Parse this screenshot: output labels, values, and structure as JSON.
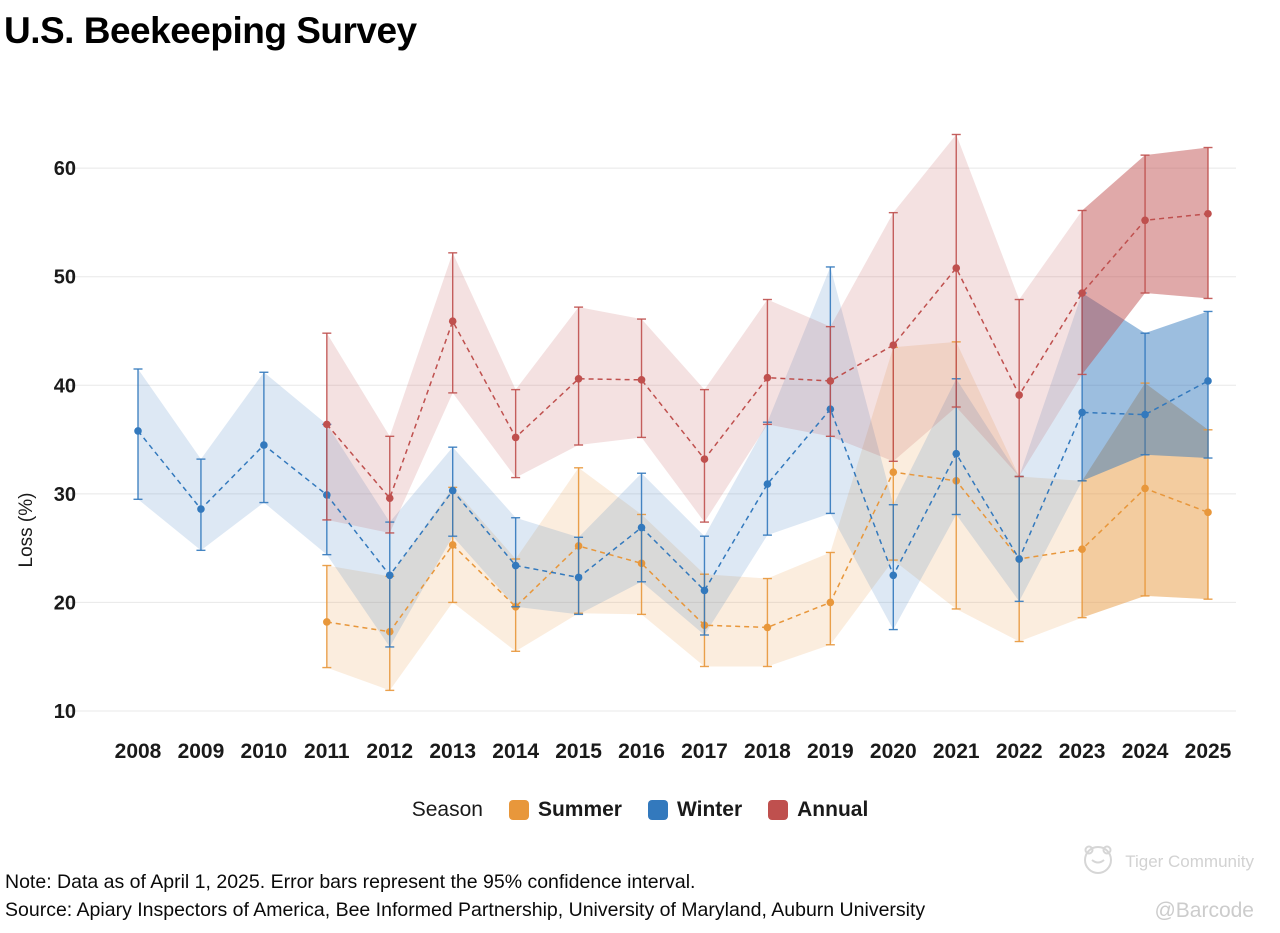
{
  "title": "U.S. Beekeeping Survey",
  "y_axis_label": "Loss (%)",
  "legend": {
    "title": "Season"
  },
  "note": "Note: Data as of April 1, 2025. Error bars represent the 95% confidence interval.",
  "source": "Source: Apiary Inspectors of America, Bee Informed Partnership, University of Maryland, Auburn University",
  "watermark": {
    "community": "Tiger Community",
    "handle": "@Barcode"
  },
  "colors": {
    "summer": "#E8973B",
    "winter": "#3379BD",
    "annual": "#BF504E",
    "grid": "#e8e8e8"
  },
  "chart_data": {
    "type": "line",
    "title": "U.S. Beekeeping Survey",
    "xlabel": "",
    "ylabel": "Loss (%)",
    "ylim": [
      8,
      65
    ],
    "yticks": [
      10,
      20,
      30,
      40,
      50,
      60
    ],
    "xticks": [
      2008,
      2009,
      2010,
      2011,
      2012,
      2013,
      2014,
      2015,
      2016,
      2017,
      2018,
      2019,
      2020,
      2021,
      2022,
      2023,
      2024,
      2025
    ],
    "x_range": [
      2008,
      2025
    ],
    "grid": "horizontal",
    "legend_position": "bottom",
    "highlight_from_year": 2023,
    "band_meaning": "95% confidence interval",
    "series": [
      {
        "name": "Summer",
        "color": "#E8973B",
        "points": [
          {
            "year": 2011,
            "value": 18.2,
            "low": 14.0,
            "high": 23.4
          },
          {
            "year": 2012,
            "value": 17.3,
            "low": 11.9,
            "high": 22.4
          },
          {
            "year": 2013,
            "value": 25.3,
            "low": 20.0,
            "high": 30.6
          },
          {
            "year": 2014,
            "value": 19.6,
            "low": 15.5,
            "high": 24.0
          },
          {
            "year": 2015,
            "value": 25.2,
            "low": 19.0,
            "high": 32.4
          },
          {
            "year": 2016,
            "value": 23.6,
            "low": 18.9,
            "high": 28.1
          },
          {
            "year": 2017,
            "value": 17.9,
            "low": 14.1,
            "high": 22.6
          },
          {
            "year": 2018,
            "value": 17.7,
            "low": 14.1,
            "high": 22.2
          },
          {
            "year": 2019,
            "value": 20.0,
            "low": 16.1,
            "high": 24.6
          },
          {
            "year": 2020,
            "value": 32.0,
            "low": 23.9,
            "high": 43.5
          },
          {
            "year": 2021,
            "value": 31.2,
            "low": 19.4,
            "high": 44.0
          },
          {
            "year": 2022,
            "value": 24.0,
            "low": 16.4,
            "high": 31.6
          },
          {
            "year": 2023,
            "value": 24.9,
            "low": 18.6,
            "high": 31.2
          },
          {
            "year": 2024,
            "value": 30.5,
            "low": 20.6,
            "high": 40.2
          },
          {
            "year": 2025,
            "value": 28.3,
            "low": 20.3,
            "high": 35.9
          }
        ]
      },
      {
        "name": "Winter",
        "color": "#3379BD",
        "points": [
          {
            "year": 2008,
            "value": 35.8,
            "low": 29.5,
            "high": 41.5
          },
          {
            "year": 2009,
            "value": 28.6,
            "low": 24.8,
            "high": 33.2
          },
          {
            "year": 2010,
            "value": 34.5,
            "low": 29.2,
            "high": 41.2
          },
          {
            "year": 2011,
            "value": 29.9,
            "low": 24.4,
            "high": 36.4
          },
          {
            "year": 2012,
            "value": 22.5,
            "low": 15.9,
            "high": 27.4
          },
          {
            "year": 2013,
            "value": 30.3,
            "low": 26.1,
            "high": 34.3
          },
          {
            "year": 2014,
            "value": 23.4,
            "low": 19.6,
            "high": 27.8
          },
          {
            "year": 2015,
            "value": 22.3,
            "low": 18.9,
            "high": 26.0
          },
          {
            "year": 2016,
            "value": 26.9,
            "low": 21.9,
            "high": 31.9
          },
          {
            "year": 2017,
            "value": 21.1,
            "low": 17.0,
            "high": 26.1
          },
          {
            "year": 2018,
            "value": 30.9,
            "low": 26.2,
            "high": 36.6
          },
          {
            "year": 2019,
            "value": 37.8,
            "low": 28.2,
            "high": 50.9
          },
          {
            "year": 2020,
            "value": 22.5,
            "low": 17.5,
            "high": 29.0
          },
          {
            "year": 2021,
            "value": 33.7,
            "low": 28.1,
            "high": 40.6
          },
          {
            "year": 2022,
            "value": 24.0,
            "low": 20.1,
            "high": 31.6
          },
          {
            "year": 2023,
            "value": 37.5,
            "low": 31.2,
            "high": 48.5
          },
          {
            "year": 2024,
            "value": 37.3,
            "low": 33.6,
            "high": 44.8
          },
          {
            "year": 2025,
            "value": 40.4,
            "low": 33.3,
            "high": 46.8
          }
        ]
      },
      {
        "name": "Annual",
        "color": "#BF504E",
        "points": [
          {
            "year": 2011,
            "value": 36.4,
            "low": 27.6,
            "high": 44.8
          },
          {
            "year": 2012,
            "value": 29.6,
            "low": 26.4,
            "high": 35.3
          },
          {
            "year": 2013,
            "value": 45.9,
            "low": 39.3,
            "high": 52.2
          },
          {
            "year": 2014,
            "value": 35.2,
            "low": 31.5,
            "high": 39.6
          },
          {
            "year": 2015,
            "value": 40.6,
            "low": 34.5,
            "high": 47.2
          },
          {
            "year": 2016,
            "value": 40.5,
            "low": 35.2,
            "high": 46.1
          },
          {
            "year": 2017,
            "value": 33.2,
            "low": 27.4,
            "high": 39.6
          },
          {
            "year": 2018,
            "value": 40.7,
            "low": 36.4,
            "high": 47.9
          },
          {
            "year": 2019,
            "value": 40.4,
            "low": 35.3,
            "high": 45.4
          },
          {
            "year": 2020,
            "value": 43.7,
            "low": 33.0,
            "high": 55.9
          },
          {
            "year": 2021,
            "value": 50.8,
            "low": 38.0,
            "high": 63.1
          },
          {
            "year": 2022,
            "value": 39.1,
            "low": 31.6,
            "high": 47.9
          },
          {
            "year": 2023,
            "value": 48.5,
            "low": 41.0,
            "high": 56.1
          },
          {
            "year": 2024,
            "value": 55.2,
            "low": 48.5,
            "high": 61.2
          },
          {
            "year": 2025,
            "value": 55.8,
            "low": 48.0,
            "high": 61.9
          }
        ]
      }
    ]
  }
}
